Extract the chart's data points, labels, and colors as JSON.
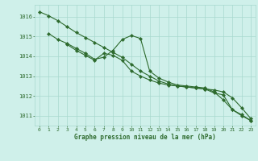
{
  "line1": {
    "x": [
      0,
      1,
      2,
      3,
      4,
      5,
      6,
      7,
      8,
      9,
      10,
      11,
      12,
      13,
      14,
      15,
      16,
      17,
      18,
      19,
      20,
      21,
      22,
      23
    ],
    "y": [
      1016.25,
      1016.05,
      1015.8,
      1015.5,
      1015.2,
      1014.95,
      1014.7,
      1014.45,
      1014.2,
      1013.95,
      1013.6,
      1013.25,
      1013.0,
      1012.75,
      1012.6,
      1012.5,
      1012.45,
      1012.4,
      1012.35,
      1012.3,
      1012.2,
      1011.9,
      1011.4,
      1010.85
    ]
  },
  "line2": {
    "x": [
      1,
      2,
      3,
      4,
      5,
      6,
      7,
      8,
      9,
      10,
      11,
      12,
      13,
      14,
      15,
      16,
      17,
      18,
      19,
      20,
      21,
      22,
      23
    ],
    "y": [
      1015.15,
      1014.85,
      1014.65,
      1014.4,
      1014.15,
      1013.85,
      1013.95,
      1014.3,
      1014.85,
      1015.05,
      1014.9,
      1013.25,
      1012.9,
      1012.7,
      1012.55,
      1012.5,
      1012.45,
      1012.4,
      1012.2,
      1011.8,
      1011.3,
      1011.0,
      1010.75
    ]
  },
  "line3": {
    "x": [
      3,
      4,
      5,
      6,
      7,
      8,
      9,
      10,
      11,
      12,
      13,
      14,
      15,
      16,
      17,
      18,
      19,
      20,
      21,
      22,
      23
    ],
    "y": [
      1014.6,
      1014.3,
      1014.05,
      1013.8,
      1014.15,
      1014.05,
      1013.8,
      1013.25,
      1013.0,
      1012.8,
      1012.65,
      1012.55,
      1012.5,
      1012.45,
      1012.4,
      1012.35,
      1012.15,
      1012.05,
      1011.3,
      1011.05,
      1010.75
    ]
  },
  "line_color": "#2d6a2d",
  "bg_color": "#cff0ea",
  "grid_color": "#a8d8ce",
  "xlabel": "Graphe pression niveau de la mer (hPa)",
  "xlabel_color": "#2d6a2d",
  "tick_color": "#2d6a2d",
  "ylim": [
    1010.5,
    1016.6
  ],
  "xlim": [
    -0.5,
    23.5
  ],
  "yticks": [
    1011,
    1012,
    1013,
    1014,
    1015,
    1016
  ],
  "xticks": [
    0,
    1,
    2,
    3,
    4,
    5,
    6,
    7,
    8,
    9,
    10,
    11,
    12,
    13,
    14,
    15,
    16,
    17,
    18,
    19,
    20,
    21,
    22,
    23
  ],
  "figsize": [
    3.2,
    2.0
  ],
  "dpi": 100
}
